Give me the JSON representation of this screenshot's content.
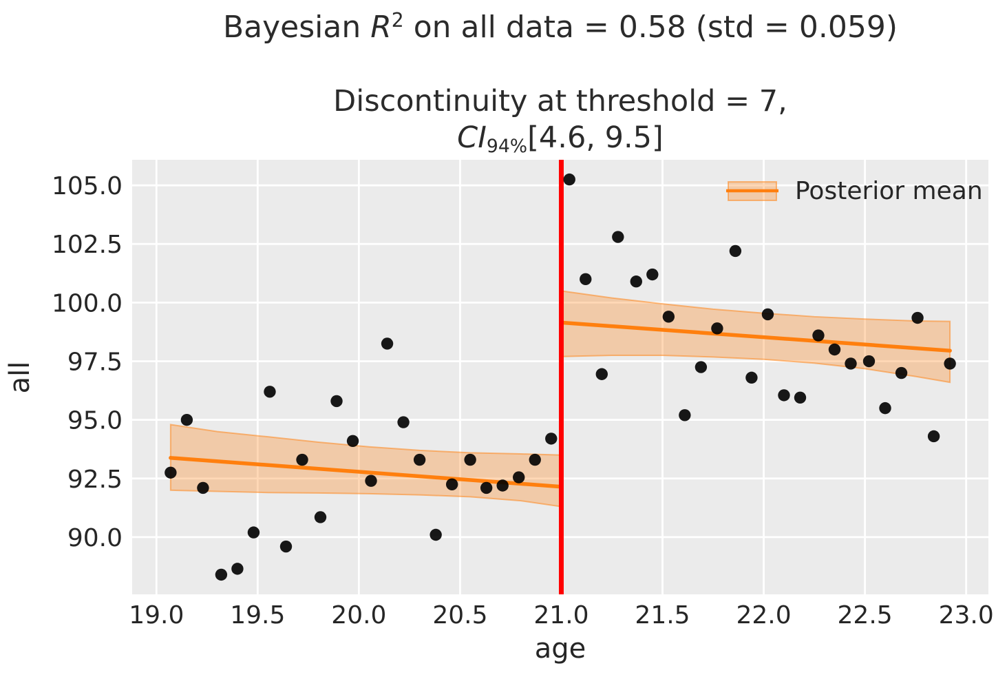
{
  "titles": {
    "main": {
      "prefix": "Bayesian ",
      "math_var": "R",
      "math_sup": "2",
      "suffix": " on all data = 0.58 (std = 0.059)"
    },
    "sub": {
      "line1": "Discontinuity at threshold = 7,",
      "ci_label": "CI",
      "ci_sub": "94%",
      "ci_interval": "[4.6, 9.5]"
    }
  },
  "chart_data": {
    "type": "scatter",
    "title": "Bayesian R² on all data = 0.58 (std = 0.059)",
    "subtitle": "Discontinuity at threshold = 7, CI 94% [4.6, 9.5]",
    "xlabel": "age",
    "ylabel": "all",
    "xlim": [
      18.88,
      23.11
    ],
    "ylim": [
      87.56,
      106.09
    ],
    "grid": true,
    "x_tick_labels": [
      "19.0",
      "19.5",
      "20.0",
      "20.5",
      "21.0",
      "21.5",
      "22.0",
      "22.5",
      "23.0"
    ],
    "y_tick_labels": [
      "90.0",
      "92.5",
      "95.0",
      "97.5",
      "100.0",
      "102.5",
      "105.0"
    ],
    "legend": {
      "label": "Posterior mean",
      "position": "upper right"
    },
    "threshold": {
      "x": 21.0,
      "color": "#ff0000",
      "line_width": 7
    },
    "colors": {
      "scatter": "#000000",
      "mean_line": "#ff7f0e",
      "band_fill": "#ff7f0e",
      "band_opacity": 0.3,
      "band_edge_opacity": 0.5,
      "plot_bg": "#ebebeb",
      "grid": "#ffffff",
      "text": "#262626"
    },
    "series": [
      {
        "name": "observations-left",
        "kind": "scatter",
        "x": [
          19.07,
          19.15,
          19.23,
          19.32,
          19.4,
          19.48,
          19.56,
          19.64,
          19.72,
          19.81,
          19.89,
          19.97,
          20.06,
          20.14,
          20.22,
          20.3,
          20.38,
          20.46,
          20.55,
          20.63,
          20.71,
          20.79,
          20.87,
          20.95
        ],
        "y": [
          92.75,
          95.0,
          92.1,
          88.4,
          88.65,
          90.2,
          96.2,
          89.6,
          93.3,
          90.85,
          95.8,
          94.1,
          92.4,
          98.25,
          94.9,
          93.3,
          90.1,
          92.25,
          93.3,
          92.1,
          92.2,
          92.55,
          93.3,
          94.2
        ]
      },
      {
        "name": "observations-right",
        "kind": "scatter",
        "x": [
          21.04,
          21.12,
          21.2,
          21.28,
          21.37,
          21.45,
          21.53,
          21.61,
          21.69,
          21.77,
          21.86,
          21.94,
          22.02,
          22.1,
          22.18,
          22.27,
          22.35,
          22.43,
          22.52,
          22.6,
          22.68,
          22.76,
          22.84,
          22.92
        ],
        "y": [
          105.25,
          101.0,
          96.95,
          102.8,
          100.9,
          101.2,
          99.4,
          95.2,
          97.25,
          98.9,
          102.2,
          96.8,
          99.5,
          96.05,
          95.95,
          98.6,
          98.0,
          97.4,
          97.5,
          95.5,
          97.0,
          99.35,
          94.3,
          97.4
        ]
      },
      {
        "name": "posterior-mean-left",
        "kind": "line",
        "x": [
          19.07,
          21.0
        ],
        "y": [
          93.38,
          92.15
        ],
        "band": {
          "x": [
            19.07,
            19.3,
            19.55,
            19.8,
            20.05,
            20.3,
            20.55,
            20.8,
            21.0
          ],
          "upper": [
            94.8,
            94.5,
            94.28,
            94.05,
            93.85,
            93.7,
            93.6,
            93.55,
            93.5
          ],
          "lower": [
            92.0,
            91.95,
            91.9,
            91.88,
            91.85,
            91.8,
            91.72,
            91.55,
            91.3
          ]
        }
      },
      {
        "name": "posterior-mean-right",
        "kind": "line",
        "x": [
          21.0,
          22.92
        ],
        "y": [
          99.15,
          97.95
        ],
        "band": {
          "x": [
            21.0,
            21.25,
            21.5,
            21.75,
            22.0,
            22.25,
            22.5,
            22.75,
            22.92
          ],
          "upper": [
            100.5,
            100.2,
            99.95,
            99.72,
            99.55,
            99.4,
            99.3,
            99.22,
            99.2
          ],
          "lower": [
            97.7,
            97.75,
            97.75,
            97.68,
            97.58,
            97.42,
            97.18,
            96.85,
            96.6
          ]
        }
      }
    ]
  }
}
